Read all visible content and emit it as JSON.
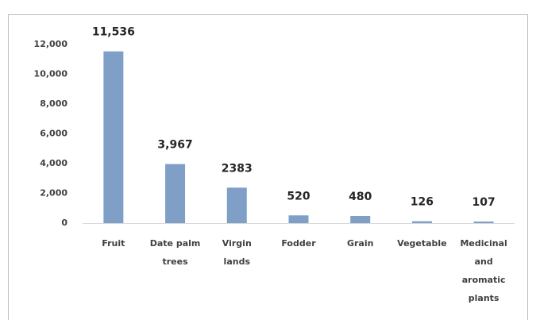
{
  "chart_data": {
    "type": "bar",
    "categories": [
      "Fruit",
      "Date palm trees",
      "Virgin lands",
      "Fodder",
      "Grain",
      "Vegetable",
      "Medicinal and aromatic plants"
    ],
    "values": [
      11536,
      3967,
      2383,
      520,
      480,
      126,
      107
    ],
    "value_labels": [
      "11,536",
      "3,967",
      "2383",
      "520",
      "480",
      "126",
      "107"
    ],
    "color": "#7f9fc6",
    "ylim": [
      0,
      12000
    ],
    "yticks": [
      0,
      {
        "value": 2000,
        "label": "2,000"
      },
      {
        "value": 4000,
        "label": "4,000"
      },
      {
        "value": 6000,
        "label": "6,000"
      },
      {
        "value": 8000,
        "label": "8,000"
      },
      {
        "value": 10000,
        "label": "10,000"
      },
      {
        "value": 12000,
        "label": "12,000"
      }
    ],
    "grid": false
  }
}
